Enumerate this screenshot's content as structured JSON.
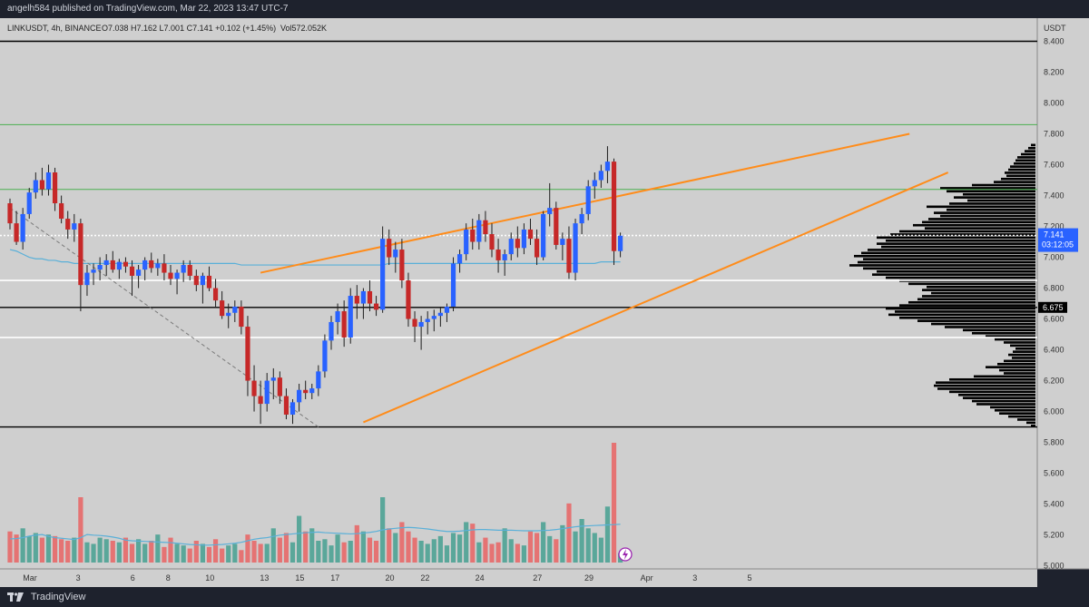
{
  "header": {
    "published_by": "angelh584 published on TradingView.com, Mar 22, 2023 13:47 UTC-7"
  },
  "footer": {
    "brand": "TradingView",
    "logo_icon": "tradingview-logo-icon"
  },
  "legend": {
    "symbol": "LINKUSDT, 4h, BINANCE",
    "ohlc": "O7.038  H7.162  L7.001  C7.141  +0.102 (+1.45%)",
    "volume": "Vol572.052K"
  },
  "colors": {
    "background": "#cfcfcf",
    "up": "#2962ff",
    "down": "#c62828",
    "wick": "#1e1e1e",
    "vol_up": "#5aa79a",
    "vol_down": "#e57373",
    "ma": "#5ab0d8",
    "wedge": "#ff8c1a",
    "green_level": "#4caf50"
  },
  "chart_data": {
    "type": "candlestick",
    "symbol": "LINKUSDT",
    "interval": "4h",
    "exchange": "BINANCE",
    "currency": "USDT",
    "y_axis_ticks": [
      "8.400",
      "8.200",
      "8.000",
      "7.800",
      "7.600",
      "7.400",
      "7.200",
      "7.000",
      "6.800",
      "6.600",
      "6.400",
      "6.200",
      "6.000",
      "5.800",
      "5.600",
      "5.400",
      "5.200",
      "5.000"
    ],
    "x_axis_ticks": [
      "Mar",
      "3",
      "6",
      "8",
      "10",
      "13",
      "15",
      "17",
      "20",
      "22",
      "24",
      "27",
      "29",
      "Apr",
      "3",
      "5"
    ],
    "last_price": "7.141",
    "countdown": "03:12:05",
    "level_label": "6.675",
    "ylim": [
      4.98,
      8.45
    ],
    "levels": {
      "black": [
        8.4,
        6.675,
        5.9
      ],
      "green": [
        7.86,
        7.44
      ],
      "white": [
        7.141,
        6.85,
        6.48
      ]
    },
    "candles": [
      [
        7.35,
        7.38,
        7.18,
        7.22
      ],
      [
        7.22,
        7.3,
        7.08,
        7.1
      ],
      [
        7.1,
        7.32,
        7.05,
        7.28
      ],
      [
        7.28,
        7.45,
        7.25,
        7.42
      ],
      [
        7.42,
        7.55,
        7.38,
        7.5
      ],
      [
        7.5,
        7.58,
        7.4,
        7.44
      ],
      [
        7.44,
        7.6,
        7.4,
        7.55
      ],
      [
        7.55,
        7.58,
        7.3,
        7.35
      ],
      [
        7.35,
        7.4,
        7.22,
        7.25
      ],
      [
        7.25,
        7.3,
        7.12,
        7.18
      ],
      [
        7.18,
        7.28,
        7.1,
        7.22
      ],
      [
        7.22,
        7.25,
        6.65,
        6.82
      ],
      [
        6.82,
        6.95,
        6.75,
        6.9
      ],
      [
        6.9,
        6.96,
        6.82,
        6.92
      ],
      [
        6.92,
        7.0,
        6.85,
        6.95
      ],
      [
        6.95,
        7.02,
        6.88,
        6.98
      ],
      [
        6.98,
        7.04,
        6.9,
        6.92
      ],
      [
        6.92,
        6.99,
        6.86,
        6.97
      ],
      [
        6.97,
        7.0,
        6.9,
        6.94
      ],
      [
        6.94,
        6.98,
        6.75,
        6.88
      ],
      [
        6.88,
        6.95,
        6.8,
        6.92
      ],
      [
        6.92,
        7.0,
        6.85,
        6.98
      ],
      [
        6.98,
        7.03,
        6.9,
        6.93
      ],
      [
        6.93,
        6.99,
        6.88,
        6.96
      ],
      [
        6.96,
        7.02,
        6.85,
        6.9
      ],
      [
        6.9,
        6.95,
        6.82,
        6.86
      ],
      [
        6.86,
        6.92,
        6.76,
        6.9
      ],
      [
        6.9,
        6.98,
        6.84,
        6.95
      ],
      [
        6.95,
        6.98,
        6.85,
        6.88
      ],
      [
        6.88,
        6.92,
        6.78,
        6.82
      ],
      [
        6.82,
        6.9,
        6.7,
        6.88
      ],
      [
        6.88,
        6.94,
        6.78,
        6.8
      ],
      [
        6.8,
        6.86,
        6.68,
        6.72
      ],
      [
        6.72,
        6.78,
        6.6,
        6.62
      ],
      [
        6.62,
        6.7,
        6.54,
        6.64
      ],
      [
        6.64,
        6.72,
        6.58,
        6.68
      ],
      [
        6.68,
        6.72,
        6.5,
        6.55
      ],
      [
        6.55,
        6.62,
        6.1,
        6.2
      ],
      [
        6.2,
        6.3,
        6.0,
        6.1
      ],
      [
        6.1,
        6.2,
        5.92,
        6.05
      ],
      [
        6.05,
        6.25,
        6.0,
        6.2
      ],
      [
        6.2,
        6.28,
        6.08,
        6.22
      ],
      [
        6.22,
        6.26,
        6.05,
        6.1
      ],
      [
        6.1,
        6.15,
        5.95,
        5.98
      ],
      [
        5.98,
        6.08,
        5.92,
        6.06
      ],
      [
        6.06,
        6.18,
        6.0,
        6.14
      ],
      [
        6.14,
        6.2,
        6.08,
        6.12
      ],
      [
        6.12,
        6.18,
        6.08,
        6.15
      ],
      [
        6.15,
        6.3,
        6.1,
        6.26
      ],
      [
        6.26,
        6.5,
        6.22,
        6.46
      ],
      [
        6.46,
        6.62,
        6.4,
        6.58
      ],
      [
        6.58,
        6.7,
        6.5,
        6.65
      ],
      [
        6.65,
        6.72,
        6.42,
        6.48
      ],
      [
        6.48,
        6.8,
        6.44,
        6.75
      ],
      [
        6.75,
        6.82,
        6.6,
        6.7
      ],
      [
        6.7,
        6.8,
        6.6,
        6.78
      ],
      [
        6.78,
        6.85,
        6.65,
        6.7
      ],
      [
        6.7,
        6.75,
        6.62,
        6.66
      ],
      [
        6.66,
        7.2,
        6.64,
        7.12
      ],
      [
        7.12,
        7.18,
        6.95,
        7.0
      ],
      [
        7.0,
        7.1,
        6.9,
        7.05
      ],
      [
        7.05,
        7.12,
        6.8,
        6.85
      ],
      [
        6.85,
        6.9,
        6.55,
        6.6
      ],
      [
        6.6,
        6.65,
        6.45,
        6.55
      ],
      [
        6.55,
        6.62,
        6.4,
        6.58
      ],
      [
        6.58,
        6.65,
        6.5,
        6.6
      ],
      [
        6.6,
        6.66,
        6.52,
        6.62
      ],
      [
        6.62,
        6.68,
        6.55,
        6.64
      ],
      [
        6.64,
        6.7,
        6.58,
        6.68
      ],
      [
        6.68,
        7.0,
        6.65,
        6.96
      ],
      [
        6.96,
        7.05,
        6.9,
        7.02
      ],
      [
        7.02,
        7.22,
        6.98,
        7.18
      ],
      [
        7.18,
        7.25,
        7.05,
        7.1
      ],
      [
        7.1,
        7.28,
        7.05,
        7.24
      ],
      [
        7.24,
        7.3,
        7.1,
        7.15
      ],
      [
        7.15,
        7.22,
        7.0,
        7.05
      ],
      [
        7.05,
        7.12,
        6.9,
        6.98
      ],
      [
        6.98,
        7.05,
        6.88,
        7.02
      ],
      [
        7.02,
        7.16,
        6.98,
        7.12
      ],
      [
        7.12,
        7.2,
        7.0,
        7.06
      ],
      [
        7.06,
        7.22,
        7.02,
        7.18
      ],
      [
        7.18,
        7.25,
        7.08,
        7.12
      ],
      [
        7.12,
        7.18,
        6.95,
        7.0
      ],
      [
        7.0,
        7.3,
        6.98,
        7.28
      ],
      [
        7.28,
        7.48,
        7.2,
        7.32
      ],
      [
        7.32,
        7.36,
        7.05,
        7.08
      ],
      [
        7.08,
        7.16,
        6.98,
        7.12
      ],
      [
        7.12,
        7.2,
        6.86,
        6.9
      ],
      [
        6.9,
        7.25,
        6.85,
        7.22
      ],
      [
        7.22,
        7.32,
        7.15,
        7.28
      ],
      [
        7.28,
        7.5,
        7.24,
        7.46
      ],
      [
        7.46,
        7.55,
        7.38,
        7.5
      ],
      [
        7.5,
        7.6,
        7.45,
        7.56
      ],
      [
        7.56,
        7.72,
        7.48,
        7.62
      ],
      [
        7.62,
        7.64,
        6.95,
        7.04
      ],
      [
        7.04,
        7.16,
        7.0,
        7.14
      ]
    ],
    "volume": [
      100,
      90,
      110,
      85,
      95,
      80,
      90,
      85,
      75,
      70,
      80,
      210,
      65,
      60,
      80,
      75,
      70,
      65,
      80,
      60,
      75,
      60,
      70,
      90,
      50,
      80,
      60,
      55,
      45,
      70,
      60,
      50,
      75,
      45,
      55,
      60,
      40,
      90,
      70,
      60,
      60,
      110,
      80,
      95,
      65,
      150,
      100,
      110,
      70,
      75,
      55,
      90,
      65,
      70,
      120,
      100,
      80,
      70,
      210,
      110,
      95,
      130,
      100,
      80,
      70,
      60,
      75,
      85,
      55,
      95,
      90,
      130,
      125,
      65,
      80,
      60,
      65,
      110,
      75,
      60,
      55,
      100,
      95,
      130,
      85,
      75,
      120,
      190,
      100,
      140,
      110,
      95,
      80,
      180,
      385,
      30
    ],
    "volume_ma": [
      76,
      77,
      80,
      85,
      88,
      90,
      84,
      80,
      78,
      76,
      74,
      80,
      90,
      88,
      87,
      85,
      82,
      78,
      72,
      70,
      69,
      68,
      67,
      66,
      65,
      64,
      62,
      60,
      58,
      57,
      56,
      56,
      57,
      58,
      60,
      62,
      65,
      70,
      75,
      78,
      80,
      84,
      88,
      90,
      92,
      94,
      96,
      97,
      98,
      96,
      95,
      94,
      93,
      92,
      93,
      95,
      97,
      100,
      105,
      108,
      110,
      112,
      113,
      112,
      110,
      108,
      105,
      102,
      100,
      100,
      101,
      103,
      105,
      106,
      106,
      105,
      104,
      104,
      104,
      103,
      102,
      102,
      102,
      103,
      104,
      106,
      109,
      112,
      115,
      117,
      118,
      119,
      120,
      121,
      122,
      123
    ],
    "price_ma": [
      7.05,
      7.04,
      7.02,
      7.0,
      6.99,
      6.99,
      6.98,
      6.98,
      6.97,
      6.97,
      6.96,
      6.96,
      6.96,
      6.96,
      6.96,
      6.96,
      6.96,
      6.96,
      6.96,
      6.96,
      6.96,
      6.96,
      6.96,
      6.96,
      6.96,
      6.96,
      6.96,
      6.96,
      6.96,
      6.96,
      6.96,
      6.96,
      6.96,
      6.96,
      6.96,
      6.96,
      6.95,
      6.95,
      6.95,
      6.95,
      6.95,
      6.95,
      6.95,
      6.95,
      6.95,
      6.95,
      6.95,
      6.95,
      6.95,
      6.95,
      6.95,
      6.95,
      6.95,
      6.95,
      6.95,
      6.95,
      6.95,
      6.95,
      6.95,
      6.96,
      6.96,
      6.96,
      6.96,
      6.96,
      6.96,
      6.96,
      6.96,
      6.96,
      6.96,
      6.96,
      6.96,
      6.96,
      6.96,
      6.96,
      6.96,
      6.96,
      6.96,
      6.96,
      6.96,
      6.96,
      6.96,
      6.96,
      6.96,
      6.96,
      6.96,
      6.96,
      6.96,
      6.96,
      6.96,
      6.96,
      6.96,
      6.96,
      6.97,
      6.97,
      6.97,
      6.97
    ],
    "trendlines": {
      "wedge_upper": [
        [
          39,
          6.9
        ],
        [
          140,
          7.8
        ]
      ],
      "wedge_lower": [
        [
          55,
          5.93
        ],
        [
          146,
          7.55
        ]
      ],
      "dashed": [
        [
          0,
          7.32
        ],
        [
          48,
          5.9
        ]
      ]
    },
    "volume_profile": [
      [
        7.72,
        5
      ],
      [
        7.7,
        8
      ],
      [
        7.68,
        12
      ],
      [
        7.66,
        16
      ],
      [
        7.64,
        20
      ],
      [
        7.62,
        22
      ],
      [
        7.6,
        24
      ],
      [
        7.58,
        28
      ],
      [
        7.56,
        30
      ],
      [
        7.54,
        34
      ],
      [
        7.52,
        32
      ],
      [
        7.5,
        38
      ],
      [
        7.48,
        46
      ],
      [
        7.46,
        70
      ],
      [
        7.44,
        105
      ],
      [
        7.42,
        98
      ],
      [
        7.4,
        80
      ],
      [
        7.38,
        90
      ],
      [
        7.36,
        75
      ],
      [
        7.34,
        95
      ],
      [
        7.32,
        120
      ],
      [
        7.3,
        98
      ],
      [
        7.28,
        112
      ],
      [
        7.26,
        105
      ],
      [
        7.24,
        118
      ],
      [
        7.22,
        125
      ],
      [
        7.2,
        135
      ],
      [
        7.18,
        122
      ],
      [
        7.16,
        150
      ],
      [
        7.14,
        160
      ],
      [
        7.12,
        175
      ],
      [
        7.1,
        165
      ],
      [
        7.08,
        175
      ],
      [
        7.06,
        170
      ],
      [
        7.04,
        185
      ],
      [
        7.02,
        192
      ],
      [
        7.0,
        200
      ],
      [
        6.98,
        190
      ],
      [
        6.96,
        196
      ],
      [
        6.94,
        205
      ],
      [
        6.92,
        190
      ],
      [
        6.9,
        175
      ],
      [
        6.88,
        180
      ],
      [
        6.86,
        165
      ],
      [
        6.84,
        150
      ],
      [
        6.82,
        140
      ],
      [
        6.8,
        120
      ],
      [
        6.78,
        125
      ],
      [
        6.76,
        115
      ],
      [
        6.74,
        125
      ],
      [
        6.72,
        130
      ],
      [
        6.7,
        140
      ],
      [
        6.68,
        150
      ],
      [
        6.66,
        165
      ],
      [
        6.64,
        155
      ],
      [
        6.62,
        162
      ],
      [
        6.6,
        150
      ],
      [
        6.58,
        130
      ],
      [
        6.56,
        115
      ],
      [
        6.54,
        100
      ],
      [
        6.52,
        80
      ],
      [
        6.5,
        70
      ],
      [
        6.48,
        55
      ],
      [
        6.46,
        45
      ],
      [
        6.44,
        35
      ],
      [
        6.42,
        28
      ],
      [
        6.4,
        22
      ],
      [
        6.38,
        25
      ],
      [
        6.36,
        30
      ],
      [
        6.34,
        26
      ],
      [
        6.32,
        35
      ],
      [
        6.3,
        42
      ],
      [
        6.28,
        55
      ],
      [
        6.26,
        40
      ],
      [
        6.24,
        35
      ],
      [
        6.22,
        68
      ],
      [
        6.2,
        95
      ],
      [
        6.18,
        110
      ],
      [
        6.16,
        112
      ],
      [
        6.14,
        108
      ],
      [
        6.12,
        95
      ],
      [
        6.1,
        85
      ],
      [
        6.08,
        80
      ],
      [
        6.06,
        70
      ],
      [
        6.04,
        65
      ],
      [
        6.02,
        50
      ],
      [
        6.0,
        45
      ],
      [
        5.98,
        40
      ],
      [
        5.96,
        30
      ],
      [
        5.94,
        20
      ],
      [
        5.92,
        10
      ],
      [
        5.9,
        5
      ]
    ]
  }
}
